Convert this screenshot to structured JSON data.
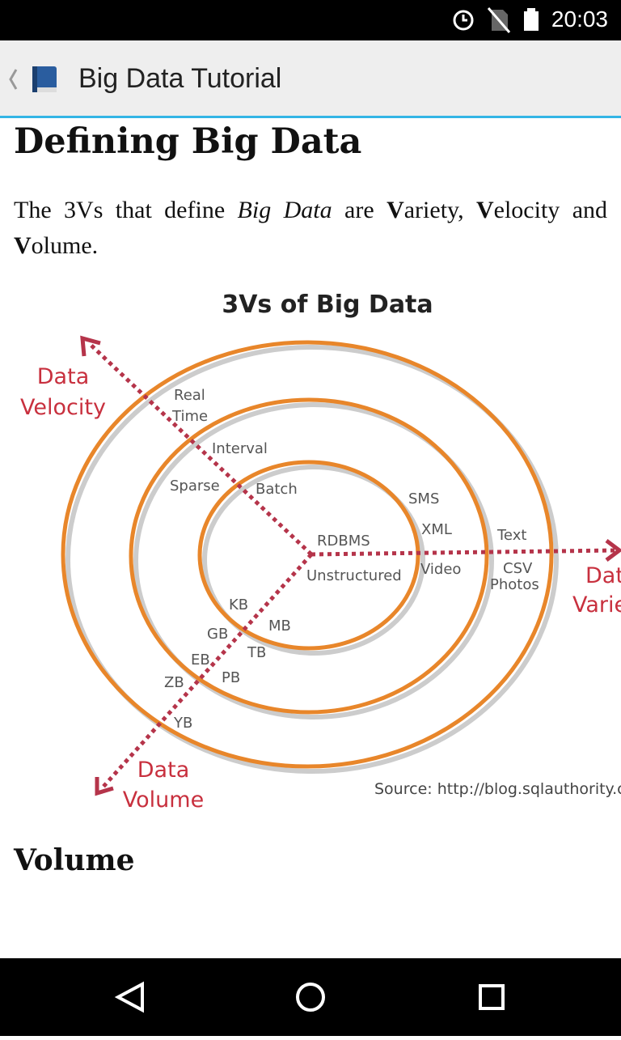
{
  "status_bar": {
    "time": "20:03"
  },
  "app_bar": {
    "title": "Big Data Tutorial"
  },
  "article": {
    "heading": "Defining Big Data",
    "paragraph": [
      "The 3Vs that define ",
      "Big Data",
      " are ",
      "V",
      "ariety, ",
      "V",
      "elocity and ",
      "V",
      "olume."
    ],
    "figure": {
      "title": "3Vs of Big Data",
      "velocity_label": [
        "Data",
        "Velocity"
      ],
      "variety_label": [
        "Data",
        "Variety"
      ],
      "volume_label": [
        "Data",
        "Volume"
      ],
      "velocity_terms": [
        "Real",
        "Time",
        "Interval",
        "Sparse",
        "Batch"
      ],
      "variety_terms": [
        "SMS",
        "XML",
        "RDBMS",
        "Unstructured",
        "Video",
        "Text",
        "CSV",
        "Photos"
      ],
      "volume_terms": [
        "KB",
        "MB",
        "GB",
        "TB",
        "EB",
        "PB",
        "ZB",
        "YB"
      ],
      "source": "Source: http://blog.sqlauthority.com"
    },
    "section_heading": "Volume"
  }
}
